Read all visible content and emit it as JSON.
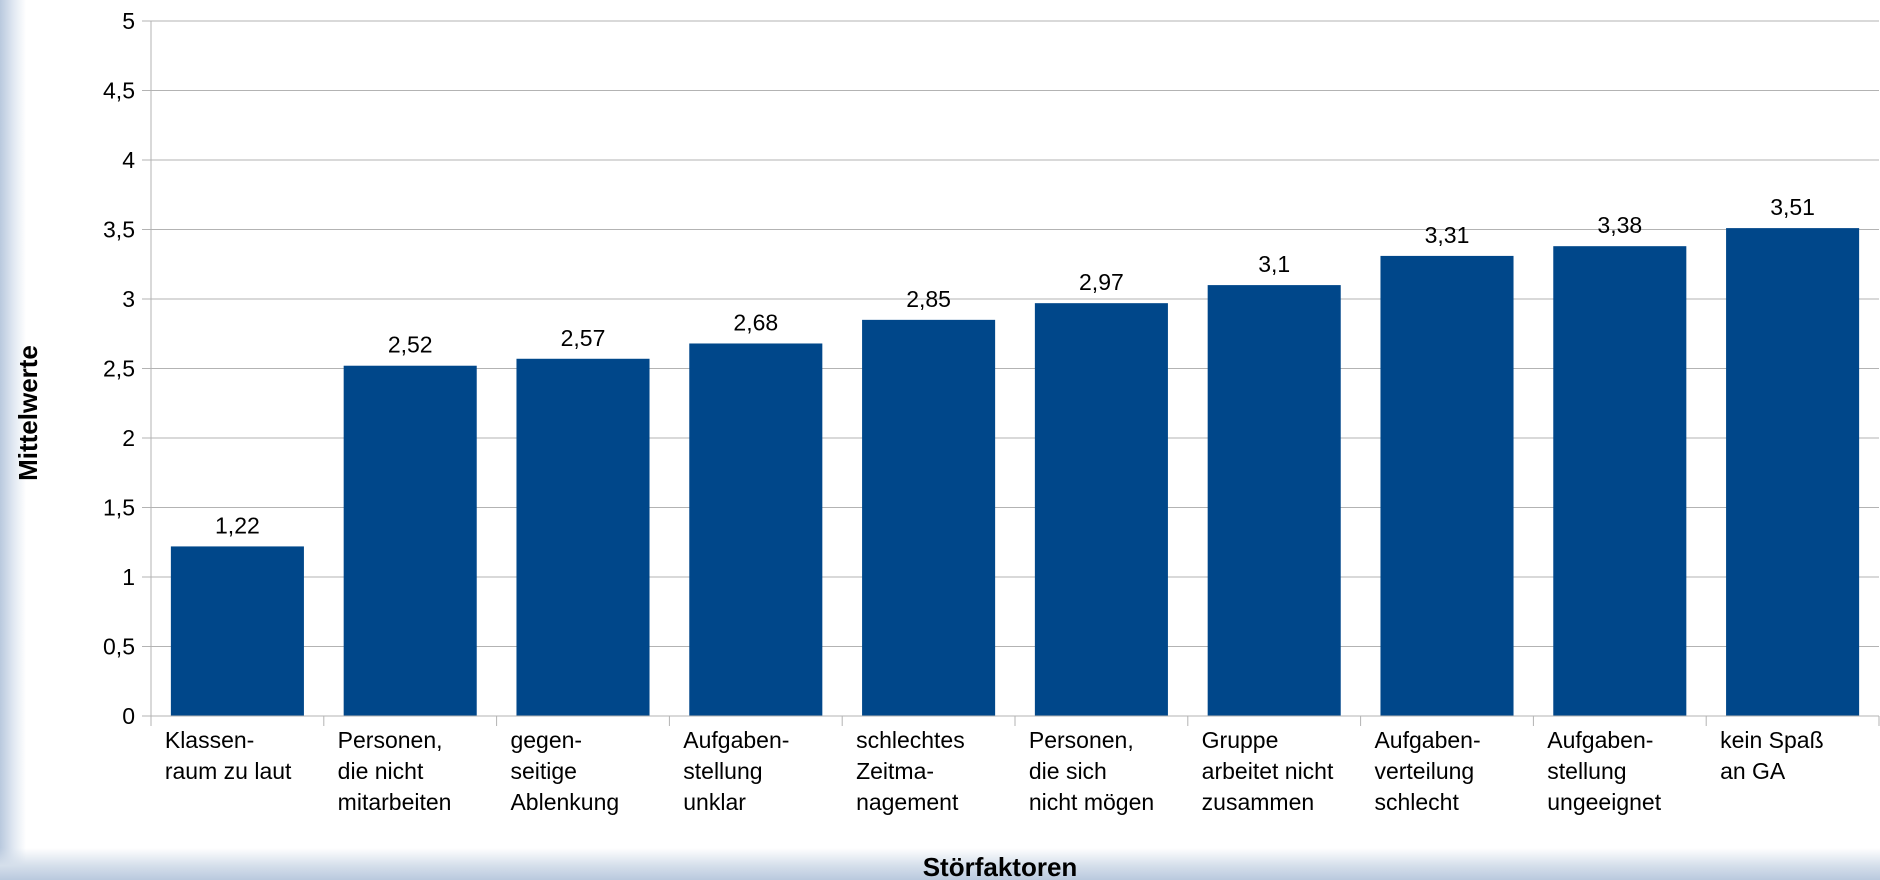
{
  "chart_data": {
    "type": "bar",
    "title": "",
    "xlabel": "Störfaktoren",
    "ylabel": "Mittelwerte",
    "ylim": [
      0,
      5
    ],
    "yticks": [
      "0",
      "0,5",
      "1",
      "1,5",
      "2",
      "2,5",
      "3",
      "3,5",
      "4",
      "4,5",
      "5"
    ],
    "ytick_values": [
      0,
      0.5,
      1,
      1.5,
      2,
      2.5,
      3,
      3.5,
      4,
      4.5,
      5
    ],
    "grid": true,
    "bar_color": "#00478a",
    "categories": [
      [
        "Klassen-",
        "raum zu laut"
      ],
      [
        "Personen,",
        "die nicht",
        "mitarbeiten"
      ],
      [
        "gegen-",
        "seitige",
        "Ablenkung"
      ],
      [
        "Aufgaben-",
        "stellung",
        "unklar"
      ],
      [
        "schlechtes",
        "Zeitma-",
        "nagement"
      ],
      [
        "Personen,",
        "die sich",
        "nicht mögen"
      ],
      [
        "Gruppe",
        "arbeitet nicht",
        "zusammen"
      ],
      [
        "Aufgaben-",
        "verteilung",
        "schlecht"
      ],
      [
        "Aufgaben-",
        "stellung",
        "ungeeignet"
      ],
      [
        "kein Spaß",
        "an GA"
      ]
    ],
    "values": [
      1.22,
      2.52,
      2.57,
      2.68,
      2.85,
      2.97,
      3.1,
      3.31,
      3.38,
      3.51
    ],
    "value_labels": [
      "1,22",
      "2,52",
      "2,57",
      "2,68",
      "2,85",
      "2,97",
      "3,1",
      "3,31",
      "3,38",
      "3,51"
    ]
  }
}
